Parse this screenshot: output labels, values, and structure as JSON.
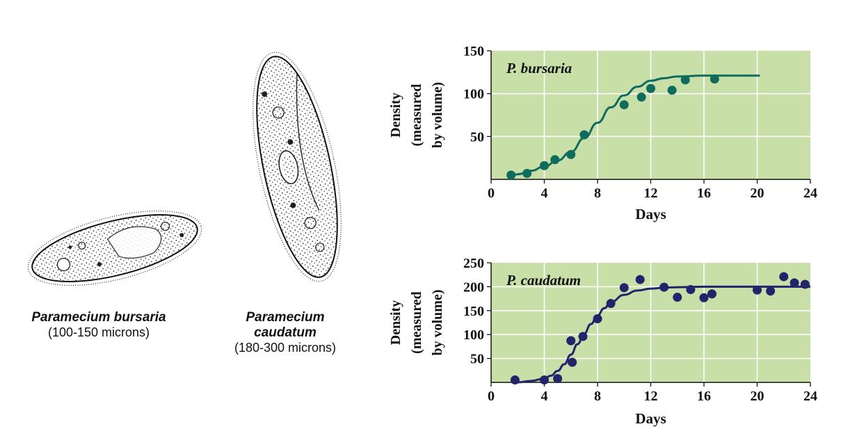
{
  "organisms": [
    {
      "name": "Paramecium bursaria",
      "size": "(100-150 microns)"
    },
    {
      "name_line1": "Paramecium",
      "name_line2": "caudatum",
      "size": "(180-300 microns)"
    }
  ],
  "chart_data": [
    {
      "type": "line",
      "title": "P. bursaria",
      "xlabel": "Days",
      "ylabel": [
        "Density",
        "(measured",
        "by volume)"
      ],
      "xlim": [
        0,
        24
      ],
      "ylim": [
        0,
        150
      ],
      "xticks": [
        0,
        4,
        8,
        12,
        16,
        20,
        24
      ],
      "yticks": [
        50,
        100,
        150
      ],
      "grid": true,
      "colors": {
        "series": "#0f6b5c",
        "background": "#c9dfa8",
        "grid": "#ffffff"
      },
      "series": [
        {
          "kind": "points",
          "x": [
            1.5,
            2.7,
            4.0,
            4.8,
            6.0,
            7.0,
            10.0,
            11.3,
            12.0,
            13.6,
            14.6,
            16.8
          ],
          "y": [
            5,
            7,
            16,
            23,
            29,
            52,
            87,
            96,
            106,
            104,
            116,
            117
          ]
        },
        {
          "kind": "fit",
          "x": [
            1.5,
            2,
            3,
            4,
            5,
            6,
            7,
            8,
            9,
            10,
            11,
            12,
            13,
            14,
            16,
            18,
            20.2
          ],
          "y": [
            4,
            6,
            10,
            15,
            22,
            32,
            48,
            66,
            84,
            98,
            108,
            115,
            118,
            120,
            121,
            121,
            121
          ]
        }
      ]
    },
    {
      "type": "line",
      "title": "P. caudatum",
      "xlabel": "Days",
      "ylabel": [
        "Density",
        "(measured",
        "by volume)"
      ],
      "xlim": [
        0,
        24
      ],
      "ylim": [
        0,
        250
      ],
      "xticks": [
        0,
        4,
        8,
        12,
        16,
        20,
        24
      ],
      "yticks": [
        50,
        100,
        150,
        200,
        250
      ],
      "grid": true,
      "colors": {
        "series": "#22236b",
        "background": "#c9dfa8",
        "grid": "#ffffff"
      },
      "series": [
        {
          "kind": "points",
          "x": [
            1.8,
            4.0,
            5.0,
            6.0,
            6.1,
            6.9,
            8.0,
            9.0,
            10.0,
            11.2,
            13.0,
            14.0,
            15.0,
            16.0,
            16.6,
            20.0,
            21.0,
            22.0,
            22.8,
            23.6
          ],
          "y": [
            5,
            5,
            8,
            87,
            42,
            96,
            133,
            165,
            198,
            215,
            199,
            178,
            194,
            177,
            185,
            193,
            191,
            221,
            208,
            205
          ]
        },
        {
          "kind": "fit",
          "x": [
            2,
            3,
            4,
            4.5,
            5,
            5.5,
            6,
            6.5,
            7,
            7.5,
            8,
            8.5,
            9,
            10,
            11,
            12,
            13,
            14,
            16,
            20,
            24
          ],
          "y": [
            0,
            3,
            8,
            14,
            24,
            38,
            58,
            80,
            102,
            122,
            140,
            155,
            168,
            183,
            192,
            196,
            198,
            199,
            200,
            200,
            200
          ]
        }
      ]
    }
  ]
}
